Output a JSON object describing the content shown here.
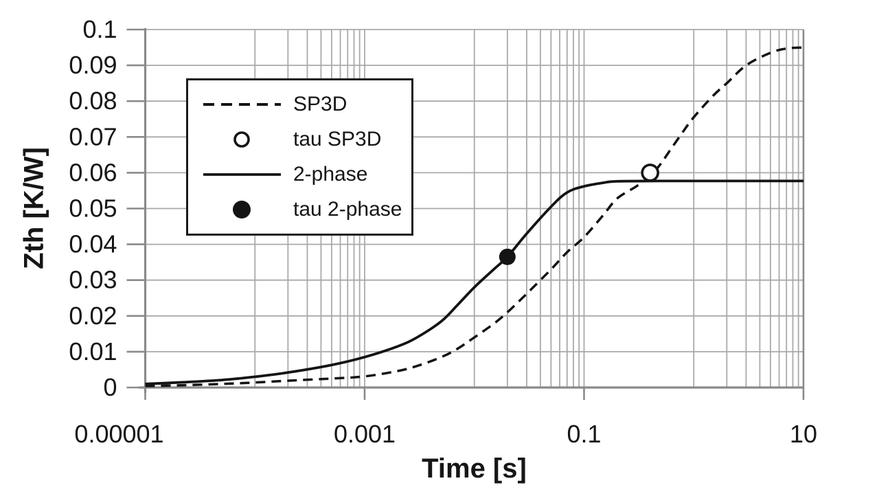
{
  "chart_data": {
    "type": "line",
    "title": "",
    "xlabel": "Time [s]",
    "ylabel": "Zth [K/W]",
    "x_scale": "log",
    "xlim": [
      1e-05,
      10
    ],
    "ylim": [
      0,
      0.1
    ],
    "grid": "on",
    "x_ticks": [
      {
        "value": 1e-05,
        "label": "0.00001"
      },
      {
        "value": 0.001,
        "label": "0.001"
      },
      {
        "value": 0.1,
        "label": "0.1"
      },
      {
        "value": 10,
        "label": "10"
      }
    ],
    "x_minor_gridlines": [
      0.0001,
      0.0002,
      0.0003,
      0.0004,
      0.0005,
      0.0006,
      0.0007,
      0.0008,
      0.0009,
      0.01,
      0.02,
      0.03,
      0.04,
      0.05,
      0.06,
      0.07,
      0.08,
      0.09,
      1,
      2,
      3,
      4,
      5,
      6,
      7,
      8,
      9
    ],
    "y_ticks": [
      {
        "value": 0.1,
        "label": "0.1"
      },
      {
        "value": 0.09,
        "label": "0.09"
      },
      {
        "value": 0.08,
        "label": "0.08"
      },
      {
        "value": 0.07,
        "label": "0.07"
      },
      {
        "value": 0.06,
        "label": "0.06"
      },
      {
        "value": 0.05,
        "label": "0.05"
      },
      {
        "value": 0.04,
        "label": "0.04"
      },
      {
        "value": 0.03,
        "label": "0.03"
      },
      {
        "value": 0.02,
        "label": "0.02"
      },
      {
        "value": 0.01,
        "label": "0.01"
      },
      {
        "value": 0,
        "label": "0"
      }
    ],
    "series": [
      {
        "name": "SP3D",
        "style": "dashed",
        "points": [
          [
            1e-05,
            0.0004
          ],
          [
            2e-05,
            0.0006
          ],
          [
            5e-05,
            0.001
          ],
          [
            0.0001,
            0.0014
          ],
          [
            0.0002,
            0.0019
          ],
          [
            0.0005,
            0.0025
          ],
          [
            0.001,
            0.0031
          ],
          [
            0.002,
            0.0046
          ],
          [
            0.003,
            0.006
          ],
          [
            0.005,
            0.0085
          ],
          [
            0.007,
            0.0108
          ],
          [
            0.01,
            0.014
          ],
          [
            0.015,
            0.0178
          ],
          [
            0.02,
            0.021
          ],
          [
            0.03,
            0.0262
          ],
          [
            0.05,
            0.033
          ],
          [
            0.07,
            0.0378
          ],
          [
            0.1,
            0.042
          ],
          [
            0.15,
            0.0482
          ],
          [
            0.2,
            0.0528
          ],
          [
            0.3,
            0.0562
          ],
          [
            0.4,
            0.059
          ],
          [
            0.5,
            0.0625
          ],
          [
            0.6,
            0.066
          ],
          [
            0.8,
            0.0715
          ],
          [
            1,
            0.0755
          ],
          [
            1.5,
            0.0815
          ],
          [
            2,
            0.085
          ],
          [
            3,
            0.09
          ],
          [
            5,
            0.0935
          ],
          [
            7,
            0.0947
          ],
          [
            10,
            0.095
          ]
        ]
      },
      {
        "name": "2-phase",
        "style": "solid",
        "points": [
          [
            1e-05,
            0.001
          ],
          [
            2e-05,
            0.0014
          ],
          [
            5e-05,
            0.0021
          ],
          [
            0.0001,
            0.003
          ],
          [
            0.0002,
            0.0042
          ],
          [
            0.0005,
            0.0063
          ],
          [
            0.001,
            0.0085
          ],
          [
            0.002,
            0.0115
          ],
          [
            0.003,
            0.014
          ],
          [
            0.005,
            0.0185
          ],
          [
            0.007,
            0.023
          ],
          [
            0.01,
            0.028
          ],
          [
            0.015,
            0.033
          ],
          [
            0.02,
            0.0365
          ],
          [
            0.03,
            0.043
          ],
          [
            0.05,
            0.0505
          ],
          [
            0.07,
            0.0545
          ],
          [
            0.1,
            0.0562
          ],
          [
            0.15,
            0.0572
          ],
          [
            0.2,
            0.0576
          ],
          [
            0.5,
            0.0577
          ],
          [
            1,
            0.0577
          ],
          [
            2,
            0.0577
          ],
          [
            5,
            0.0577
          ],
          [
            10,
            0.0577
          ]
        ]
      }
    ],
    "markers": [
      {
        "name": "tau SP3D",
        "type": "open-circle",
        "t": 0.4,
        "z": 0.06
      },
      {
        "name": "tau 2-phase",
        "type": "filled-circle",
        "t": 0.02,
        "z": 0.0365
      }
    ],
    "legend": {
      "position": "upper-left",
      "entries": [
        "SP3D",
        "tau SP3D",
        "2-phase",
        "tau 2-phase"
      ]
    }
  },
  "colors": {
    "curve": "#141414",
    "gridline": "#a9a9a9",
    "axis": "#8a8a8a",
    "text": "#161616",
    "background": "#ffffff",
    "legend_border": "#1a1a1a"
  }
}
